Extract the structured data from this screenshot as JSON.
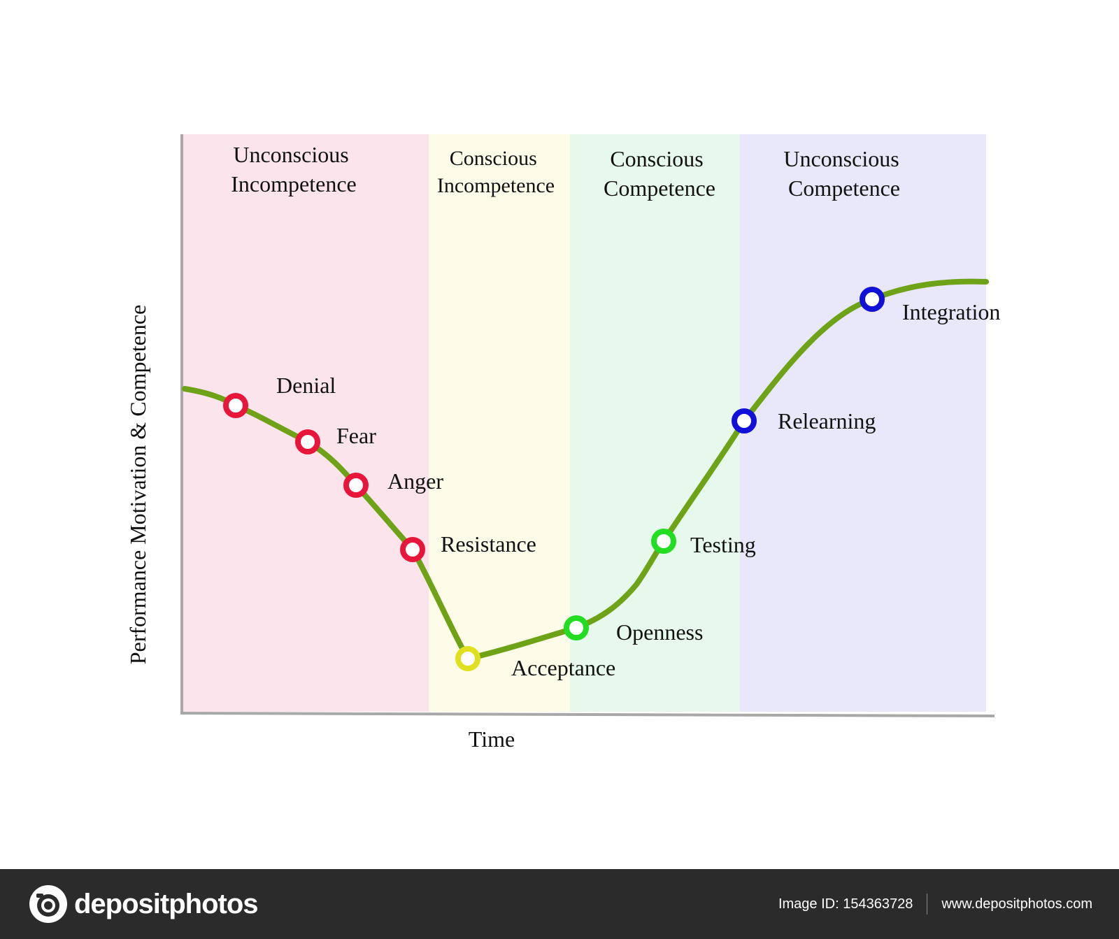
{
  "diagram": {
    "y_axis_label": "Performance Motivation & Competence",
    "x_axis_label": "Time",
    "zones": [
      {
        "label_line1": "Unconscious",
        "label_line2": "Incompetence",
        "color": "#fce4ec"
      },
      {
        "label_line1": "Conscious",
        "label_line2": "Incompetence",
        "color": "#fdfce8"
      },
      {
        "label_line1": "Conscious",
        "label_line2": "Competence",
        "color": "#e6f9ec"
      },
      {
        "label_line1": "Unconscious",
        "label_line2": "Competence",
        "color": "#e8e8fa"
      }
    ],
    "curve_color": "#6fa317",
    "stages": [
      {
        "label": "Denial",
        "color": "#e8163a"
      },
      {
        "label": "Fear",
        "color": "#e8163a"
      },
      {
        "label": "Anger",
        "color": "#e8163a"
      },
      {
        "label": "Resistance",
        "color": "#e8163a"
      },
      {
        "label": "Acceptance",
        "color": "#e0e020"
      },
      {
        "label": "Openness",
        "color": "#22dd22"
      },
      {
        "label": "Testing",
        "color": "#22dd22"
      },
      {
        "label": "Relearning",
        "color": "#1010d8"
      },
      {
        "label": "Integration",
        "color": "#1010d8"
      }
    ]
  },
  "footer": {
    "brand": "depositphotos",
    "image_id": "Image ID: 154363728",
    "website": "www.depositphotos.com"
  }
}
